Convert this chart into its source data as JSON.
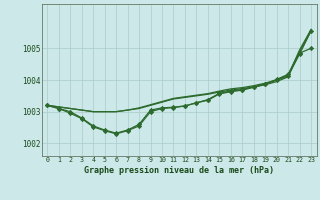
{
  "background_color": "#cce8e8",
  "grid_color": "#aacccc",
  "line_color": "#2d6a2d",
  "marker_color": "#2d6a2d",
  "title": "Graphe pression niveau de la mer (hPa)",
  "xlim": [
    -0.5,
    23.5
  ],
  "ylim": [
    1001.6,
    1006.4
  ],
  "yticks": [
    1002,
    1003,
    1004,
    1005
  ],
  "xticks": [
    0,
    1,
    2,
    3,
    4,
    5,
    6,
    7,
    8,
    9,
    10,
    11,
    12,
    13,
    14,
    15,
    16,
    17,
    18,
    19,
    20,
    21,
    22,
    23
  ],
  "series_straight1": [
    1003.2,
    1003.15,
    1003.1,
    1003.05,
    1003.0,
    1003.0,
    1003.0,
    1003.05,
    1003.1,
    1003.2,
    1003.3,
    1003.4,
    1003.45,
    1003.5,
    1003.55,
    1003.62,
    1003.68,
    1003.73,
    1003.78,
    1003.85,
    1003.95,
    1004.1,
    1004.9,
    1005.55
  ],
  "series_straight2": [
    1003.2,
    1003.15,
    1003.1,
    1003.05,
    1003.0,
    1003.0,
    1003.0,
    1003.05,
    1003.12,
    1003.22,
    1003.32,
    1003.42,
    1003.47,
    1003.52,
    1003.57,
    1003.65,
    1003.72,
    1003.76,
    1003.82,
    1003.9,
    1004.0,
    1004.15,
    1004.95,
    1005.6
  ],
  "series_marker1": [
    1003.2,
    1003.1,
    1003.0,
    1002.8,
    1002.55,
    1002.42,
    1002.32,
    1002.42,
    1002.6,
    1003.05,
    1003.12,
    1003.14,
    1003.18,
    1003.28,
    1003.38,
    1003.58,
    1003.65,
    1003.7,
    1003.78,
    1003.88,
    1004.02,
    1004.18,
    1004.85,
    1005.0
  ],
  "series_marker2": [
    1003.2,
    1003.1,
    1002.95,
    1002.78,
    1002.52,
    1002.4,
    1002.3,
    1002.4,
    1002.55,
    1003.0,
    1003.1,
    1003.13,
    1003.18,
    1003.28,
    1003.36,
    1003.56,
    1003.63,
    1003.68,
    1003.77,
    1003.87,
    1004.0,
    1004.13,
    1004.82,
    1005.55
  ]
}
